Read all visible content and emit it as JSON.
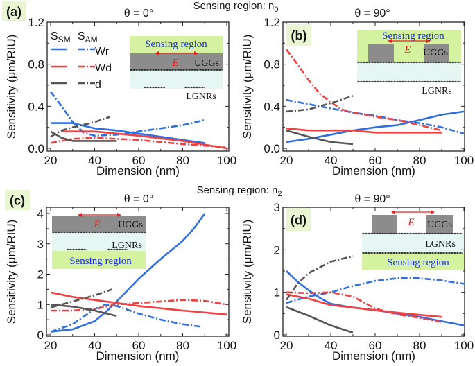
{
  "headers": [
    "Sensing region: n",
    "Sensing region: n"
  ],
  "header_subscripts": [
    "0",
    "2"
  ],
  "colors": {
    "Wr": "#2f6fe0",
    "Wd": "#f04040",
    "d": "#555555",
    "label_bg": "#e9f6d2",
    "sensing_bg": "#d4f2a0",
    "spacer_bg": "#e6f7f3",
    "grating": "#8c8c8c"
  },
  "legend": {
    "sm_label": "S",
    "sm_sub": "SM",
    "am_label": "S",
    "am_sub": "AM",
    "items": [
      "Wr",
      "Wd",
      "d"
    ]
  },
  "inset_text": {
    "sensing": "Sensing region",
    "field": "E",
    "ugg": "UGGs",
    "lgnr": "LGNRs"
  },
  "chart_data": [
    {
      "type": "line",
      "panel": "(a)",
      "title": "θ = 0°",
      "xlabel": "Dimension (nm)",
      "ylabel": "Sensitivity (μm/RIU)",
      "xlim": [
        20,
        100
      ],
      "ylim": [
        0,
        1.2
      ],
      "xticks": [
        20,
        40,
        60,
        80,
        100
      ],
      "yticks": [
        "0.0",
        "0.4",
        "0.8",
        "1.2"
      ],
      "series": [
        {
          "name": "Wr",
          "kind": "SM",
          "x": [
            20,
            30,
            40,
            50,
            60,
            70,
            80,
            90
          ],
          "y": [
            0.24,
            0.24,
            0.19,
            0.17,
            0.14,
            0.11,
            0.08,
            0.05
          ]
        },
        {
          "name": "Wr",
          "kind": "AM",
          "x": [
            20,
            25,
            30,
            35,
            40,
            50,
            60,
            70,
            80,
            90
          ],
          "y": [
            0.54,
            0.4,
            0.25,
            0.15,
            0.12,
            0.13,
            0.16,
            0.19,
            0.22,
            0.27
          ]
        },
        {
          "name": "Wd",
          "kind": "SM",
          "x": [
            25,
            40,
            60,
            80,
            100
          ],
          "y": [
            0.16,
            0.16,
            0.12,
            0.07,
            0.0
          ]
        },
        {
          "name": "Wd",
          "kind": "AM",
          "x": [
            20,
            30,
            40,
            60,
            80,
            100
          ],
          "y": [
            0.05,
            0.09,
            0.1,
            0.08,
            0.04,
            0.01
          ]
        },
        {
          "name": "d",
          "kind": "SM",
          "x": [
            20,
            25,
            30,
            40,
            50
          ],
          "y": [
            0.16,
            0.1,
            0.07,
            0.07,
            0.07
          ]
        },
        {
          "name": "d",
          "kind": "AM",
          "x": [
            20,
            25,
            30,
            40,
            47
          ],
          "y": [
            0.11,
            0.17,
            0.2,
            0.25,
            0.3
          ]
        }
      ]
    },
    {
      "type": "line",
      "panel": "(b)",
      "title": "θ = 90°",
      "xlabel": "Dimension (nm)",
      "ylabel": "Sensitivity (μm/RIU)",
      "xlim": [
        20,
        100
      ],
      "ylim": [
        0,
        1.2
      ],
      "xticks": [
        20,
        40,
        60,
        80,
        100
      ],
      "yticks": [
        "0.0",
        "0.4",
        "0.8",
        "1.2"
      ],
      "series": [
        {
          "name": "Wr",
          "kind": "SM",
          "x": [
            20,
            30,
            40,
            50,
            60,
            70,
            80,
            90,
            100
          ],
          "y": [
            0.06,
            0.09,
            0.13,
            0.17,
            0.2,
            0.22,
            0.27,
            0.32,
            0.35
          ]
        },
        {
          "name": "Wr",
          "kind": "AM",
          "x": [
            20,
            30,
            40,
            50,
            60,
            70,
            80,
            90,
            100
          ],
          "y": [
            0.46,
            0.42,
            0.38,
            0.34,
            0.31,
            0.27,
            0.24,
            0.2,
            0.14
          ]
        },
        {
          "name": "Wd",
          "kind": "SM",
          "x": [
            20,
            30,
            40,
            50,
            60,
            70,
            90
          ],
          "y": [
            0.19,
            0.17,
            0.17,
            0.17,
            0.15,
            0.15,
            0.15
          ]
        },
        {
          "name": "Wd",
          "kind": "AM",
          "x": [
            20,
            25,
            30,
            35,
            40,
            45,
            50,
            60,
            70,
            80,
            90
          ],
          "y": [
            0.94,
            0.8,
            0.65,
            0.52,
            0.44,
            0.37,
            0.34,
            0.3,
            0.27,
            0.22,
            0.17
          ]
        },
        {
          "name": "d",
          "kind": "SM",
          "x": [
            20,
            30,
            40,
            50
          ],
          "y": [
            0.17,
            0.11,
            0.06,
            0.04
          ]
        },
        {
          "name": "d",
          "kind": "AM",
          "x": [
            20,
            30,
            40,
            50
          ],
          "y": [
            0.35,
            0.37,
            0.43,
            0.5
          ]
        }
      ]
    },
    {
      "type": "line",
      "panel": "(c)",
      "title": "θ = 0°",
      "xlabel": "Dimension (nm)",
      "ylabel": "Sensitivity (μm/RIU)",
      "xlim": [
        20,
        100
      ],
      "ylim": [
        0,
        4
      ],
      "xticks": [
        20,
        40,
        60,
        80,
        100
      ],
      "yticks": [
        "0",
        "1",
        "2",
        "3",
        "4"
      ],
      "series": [
        {
          "name": "Wr",
          "kind": "SM",
          "x": [
            20,
            30,
            40,
            45,
            50,
            60,
            70,
            80,
            85,
            90
          ],
          "y": [
            0.1,
            0.18,
            0.45,
            0.75,
            1.1,
            1.85,
            2.5,
            3.1,
            3.5,
            4.0
          ]
        },
        {
          "name": "Wr",
          "kind": "AM",
          "x": [
            20,
            30,
            40,
            45,
            50,
            60,
            70,
            80,
            88
          ],
          "y": [
            0.1,
            0.35,
            0.85,
            1.0,
            0.95,
            0.7,
            0.5,
            0.35,
            0.27
          ]
        },
        {
          "name": "Wd",
          "kind": "SM",
          "x": [
            20,
            30,
            40,
            50,
            60,
            80,
            100
          ],
          "y": [
            1.4,
            1.25,
            1.15,
            1.05,
            0.95,
            0.8,
            0.67
          ]
        },
        {
          "name": "Wd",
          "kind": "AM",
          "x": [
            20,
            30,
            40,
            50,
            60,
            70,
            80,
            90,
            100
          ],
          "y": [
            0.8,
            0.8,
            0.85,
            1.0,
            1.05,
            1.1,
            1.15,
            1.12,
            1.0
          ]
        },
        {
          "name": "d",
          "kind": "SM",
          "x": [
            20,
            30,
            40,
            50
          ],
          "y": [
            1.0,
            0.93,
            0.8,
            0.62
          ]
        },
        {
          "name": "d",
          "kind": "AM",
          "x": [
            20,
            25,
            30,
            40,
            48
          ],
          "y": [
            0.9,
            1.0,
            1.1,
            1.3,
            1.5
          ]
        }
      ]
    },
    {
      "type": "line",
      "panel": "(d)",
      "title": "θ = 90°",
      "xlabel": "Dimension (nm)",
      "ylabel": "Sensitivity (μm/RIU)",
      "xlim": [
        20,
        100
      ],
      "ylim": [
        0,
        3
      ],
      "xticks": [
        20,
        40,
        60,
        80,
        100
      ],
      "yticks": [
        "0",
        "1",
        "2",
        "3"
      ],
      "series": [
        {
          "name": "Wr",
          "kind": "SM",
          "x": [
            20,
            25,
            30,
            35,
            40,
            50,
            60,
            70,
            80,
            90,
            100
          ],
          "y": [
            1.5,
            1.25,
            1.05,
            0.87,
            0.73,
            0.64,
            0.58,
            0.5,
            0.42,
            0.32,
            0.22
          ]
        },
        {
          "name": "Wr",
          "kind": "AM",
          "x": [
            20,
            30,
            40,
            50,
            60,
            70,
            75,
            80,
            90,
            100
          ],
          "y": [
            0.75,
            0.9,
            1.0,
            1.15,
            1.27,
            1.33,
            1.34,
            1.33,
            1.28,
            1.2
          ]
        },
        {
          "name": "Wd",
          "kind": "SM",
          "x": [
            20,
            30,
            40,
            50,
            60,
            70,
            80,
            90
          ],
          "y": [
            0.95,
            0.85,
            0.7,
            0.64,
            0.58,
            0.52,
            0.47,
            0.42
          ]
        },
        {
          "name": "Wd",
          "kind": "AM",
          "x": [
            20,
            30,
            40,
            50,
            60,
            70,
            80,
            90
          ],
          "y": [
            1.0,
            0.98,
            1.0,
            0.9,
            0.62,
            0.48,
            0.4,
            0.3
          ]
        },
        {
          "name": "d",
          "kind": "SM",
          "x": [
            20,
            30,
            40,
            50
          ],
          "y": [
            0.65,
            0.45,
            0.22,
            0.05
          ]
        },
        {
          "name": "d",
          "kind": "AM",
          "x": [
            20,
            25,
            30,
            40,
            50
          ],
          "y": [
            0.82,
            1.2,
            1.45,
            1.72,
            1.85
          ]
        }
      ]
    }
  ]
}
